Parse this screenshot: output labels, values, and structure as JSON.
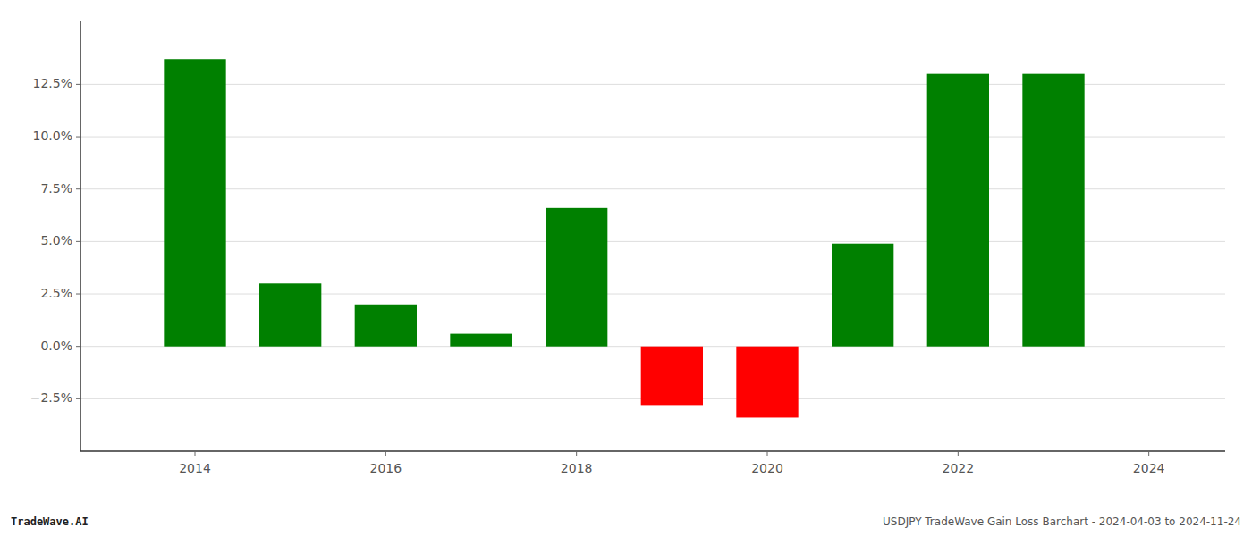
{
  "chart_data": {
    "type": "bar",
    "x": [
      2014,
      2015,
      2016,
      2017,
      2018,
      2019,
      2020,
      2021,
      2022,
      2023
    ],
    "values": [
      0.137,
      0.03,
      0.02,
      0.006,
      0.066,
      -0.028,
      -0.034,
      0.049,
      0.13,
      0.13
    ],
    "colors": [
      "#008000",
      "#008000",
      "#008000",
      "#008000",
      "#008000",
      "#ff0000",
      "#ff0000",
      "#008000",
      "#008000",
      "#008000"
    ],
    "xlim": [
      2012.8,
      2024.8
    ],
    "xticks": [
      2014,
      2016,
      2018,
      2020,
      2022,
      2024
    ],
    "ylim": [
      -0.05,
      0.155
    ],
    "yticks": [
      {
        "value": -0.025,
        "label": "−2.5%"
      },
      {
        "value": 0.0,
        "label": "0.0%"
      },
      {
        "value": 0.025,
        "label": "2.5%"
      },
      {
        "value": 0.05,
        "label": "5.0%"
      },
      {
        "value": 0.075,
        "label": "7.5%"
      },
      {
        "value": 0.1,
        "label": "10.0%"
      },
      {
        "value": 0.125,
        "label": "12.5%"
      }
    ],
    "grid": true,
    "annotations": [
      "TradeWave.AI",
      "USDJPY TradeWave Gain Loss Barchart - 2024-04-03 to 2024-11-24"
    ]
  }
}
